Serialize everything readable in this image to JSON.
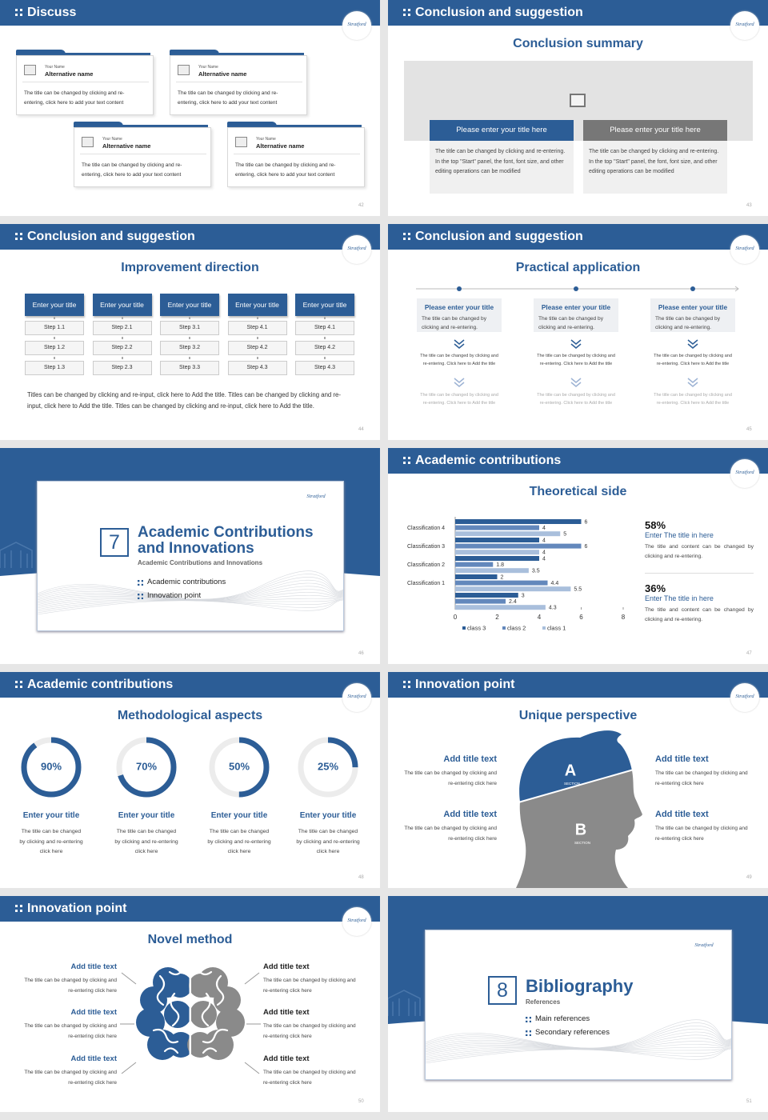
{
  "logo": "Stratford",
  "chart_data": {
    "type": "bar",
    "categories": [
      "Classification 4",
      "Classification 3",
      "Classification 2",
      "Classification 1",
      null
    ],
    "series": [
      {
        "name": "class 3",
        "color": "#2c5d96",
        "values": [
          6,
          4,
          4,
          2,
          3
        ]
      },
      {
        "name": "class 2",
        "color": "#6388bc",
        "values": [
          4,
          6,
          1.8,
          4.4,
          2.4
        ]
      },
      {
        "name": "class 1",
        "color": "#a9bfdc",
        "values": [
          5,
          4,
          3.5,
          5.5,
          4.3
        ]
      }
    ],
    "xlim": [
      0,
      8
    ],
    "xticks": [
      0,
      2,
      4,
      6,
      8
    ],
    "legend": "bottom"
  },
  "slides": [
    {
      "number": "42",
      "header": "Discuss",
      "cards": [
        {
          "name_label": "Your Name",
          "name": "Alternative name",
          "text": "The title can be changed by clicking and re-entering, click here to add your text content"
        },
        {
          "name_label": "Your Name",
          "name": "Alternative name",
          "text": "The title can be changed by clicking and re-entering, click here to add your text content"
        },
        {
          "name_label": "Your Name",
          "name": "Alternative name",
          "text": "The title can be changed by clicking and re-entering, click here to add your text content"
        },
        {
          "name_label": "Your Name",
          "name": "Alternative name",
          "text": "The title can be changed by clicking and re-entering, click here to add your text content"
        }
      ]
    },
    {
      "number": "43",
      "header": "Conclusion and suggestion",
      "title": "Conclusion summary",
      "panels": [
        {
          "title": "Please enter your title here",
          "text": "The title can be changed by clicking and re-entering. In the top \"Start\" panel, the font, font size, and other editing operations can be modified"
        },
        {
          "title": "Please enter your title here",
          "text": "The title can be changed by clicking and re-entering. In the top \"Start\" panel, the font, font size, and other editing operations can be modified"
        }
      ]
    },
    {
      "number": "44",
      "header": "Conclusion and suggestion",
      "title": "Improvement direction",
      "columns": [
        {
          "title": "Enter your title",
          "steps": [
            "Step 1.1",
            "Step 1.2",
            "Step 1.3"
          ]
        },
        {
          "title": "Enter your title",
          "steps": [
            "Step 2.1",
            "Step 2.2",
            "Step 2.3"
          ]
        },
        {
          "title": "Enter your title",
          "steps": [
            "Step 3.1",
            "Step 3.2",
            "Step 3.3"
          ]
        },
        {
          "title": "Enter your title",
          "steps": [
            "Step 4.1",
            "Step 4.2",
            "Step 4.3"
          ]
        },
        {
          "title": "Enter your title",
          "steps": [
            "Step 4.1",
            "Step 4.2",
            "Step 4.3"
          ]
        }
      ],
      "text": "Titles can be changed by clicking and re-input, click here to Add the title. Titles can be changed by clicking and re-input, click here to Add the title. Titles can be changed by clicking and re-input, click here to Add the title."
    },
    {
      "number": "45",
      "header": "Conclusion and suggestion",
      "title": "Practical application",
      "columns": [
        {
          "title": "Please enter your title",
          "text": "The title can be changed by clicking and re-entering.",
          "steps": [
            "The title can be changed by clicking and re-entering. Click here to Add the title",
            "The title can be changed by clicking and re-entering. Click here to Add the title"
          ]
        },
        {
          "title": "Please enter your title",
          "text": "The title can be changed by clicking and re-entering.",
          "steps": [
            "The title can be changed by clicking and re-entering. Click here to Add the title",
            "The title can be changed by clicking and re-entering. Click here to Add the title"
          ]
        },
        {
          "title": "Please enter your title",
          "text": "The title can be changed by clicking and re-entering.",
          "steps": [
            "The title can be changed by clicking and re-entering. Click here to Add the title",
            "The title can be changed by clicking and re-entering. Click here to Add the title"
          ]
        }
      ]
    },
    {
      "number": "46",
      "number_box": "7",
      "title": "Academic Contributions and Innovations",
      "subtitle": "Academic Contributions and Innovations",
      "items": [
        "Academic contributions",
        "Innovation point"
      ]
    },
    {
      "number": "47",
      "header": "Academic contributions",
      "title": "Theoretical side",
      "stats": [
        {
          "value": "58%",
          "title": "Enter The title in here",
          "text": "The title and content can be changed by clicking and re-entering."
        },
        {
          "value": "36%",
          "title": "Enter The title in here",
          "text": "The title and content can be changed by clicking and re-entering."
        }
      ]
    },
    {
      "number": "48",
      "header": "Academic contributions",
      "title": "Methodological aspects",
      "rings": {
        "values": [
          90,
          70,
          50,
          25
        ],
        "value_labels": [
          "90%",
          "70%",
          "50%",
          "25%"
        ]
      },
      "items": [
        {
          "title": "Enter your title",
          "text": "The title can be changed by clicking and re-entering click here"
        },
        {
          "title": "Enter your title",
          "text": "The title can be changed by clicking and re-entering click here"
        },
        {
          "title": "Enter your title",
          "text": "The title can be changed by clicking and re-entering click here"
        },
        {
          "title": "Enter your title",
          "text": "The title can be changed by clicking and re-entering click here"
        }
      ]
    },
    {
      "number": "49",
      "header": "Innovation point",
      "title": "Unique perspective",
      "head": {
        "a": "A",
        "b": "B",
        "section": "SECTION"
      },
      "items": [
        {
          "title": "Add title text",
          "text": "The title can be changed by clicking and re-entering click here"
        },
        {
          "title": "Add title text",
          "text": "The title can be changed by clicking and re-entering click here"
        },
        {
          "title": "Add title text",
          "text": "The title can be changed by clicking and re-entering click here"
        },
        {
          "title": "Add title text",
          "text": "The title can be changed by clicking and re-entering click here"
        }
      ]
    },
    {
      "number": "50",
      "header": "Innovation point",
      "title": "Novel method",
      "items": [
        {
          "title": "Add title text",
          "text": "The title can be changed by clicking and re-entering click here"
        },
        {
          "title": "Add title text",
          "text": "The title can be changed by clicking and re-entering click here"
        },
        {
          "title": "Add title text",
          "text": "The title can be changed by clicking and re-entering click here"
        },
        {
          "title": "Add title text",
          "text": "The title can be changed by clicking and re-entering click here"
        },
        {
          "title": "Add title text",
          "text": "The title can be changed by clicking and re-entering click here"
        },
        {
          "title": "Add title text",
          "text": "The title can be changed by clicking and re-entering click here"
        }
      ]
    },
    {
      "number": "51",
      "number_box": "8",
      "title": "Bibliography",
      "subtitle": "References",
      "items": [
        "Main references",
        "Secondary references"
      ]
    }
  ]
}
